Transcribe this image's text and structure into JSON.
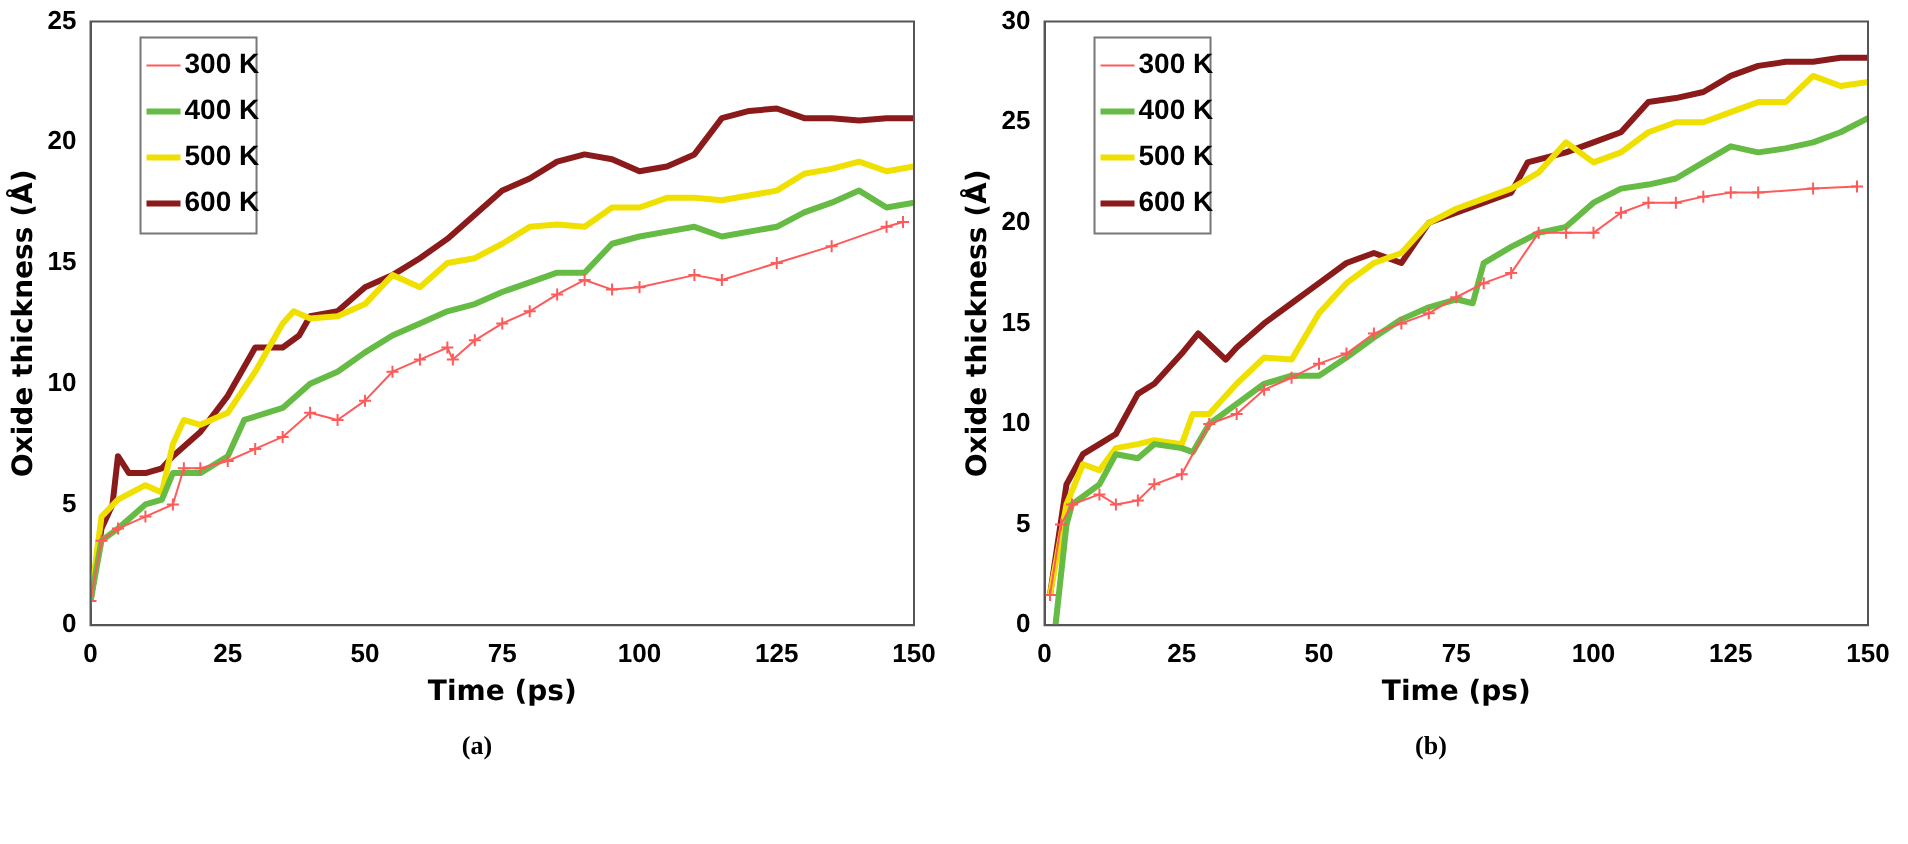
{
  "chart_data": [
    {
      "type": "line",
      "xlabel": "Time (ps)",
      "ylabel": "Oxide thickness (Å)",
      "xlim": [
        0,
        150
      ],
      "xticks": [
        0,
        25,
        50,
        75,
        100,
        125,
        150
      ],
      "ylim": [
        0,
        25
      ],
      "yticks": [
        0,
        5,
        10,
        15,
        20,
        25
      ],
      "grid": false,
      "legend": "top left",
      "annotations": [
        "(a)"
      ],
      "series": [
        {
          "name": "300 K",
          "color": "#ff5a5a",
          "marker": "cross",
          "x": [
            0,
            2,
            5,
            10,
            15,
            17,
            20,
            25,
            30,
            35,
            40,
            45,
            50,
            55,
            60,
            65,
            66,
            70,
            75,
            80,
            85,
            90,
            95,
            100,
            110,
            115,
            125,
            135,
            145,
            148
          ],
          "values": [
            1,
            3.5,
            4,
            4.5,
            5,
            6.5,
            6.5,
            6.8,
            7.3,
            7.8,
            8.8,
            8.5,
            9.3,
            10.5,
            11,
            11.5,
            11,
            11.8,
            12.5,
            13,
            13.7,
            14.3,
            13.9,
            14,
            14.5,
            14.3,
            15,
            15.7,
            16.5,
            16.7
          ]
        },
        {
          "name": "400 K",
          "color": "#66bb44",
          "x": [
            0,
            2,
            5,
            10,
            13,
            15,
            20,
            25,
            28,
            35,
            40,
            45,
            50,
            55,
            60,
            65,
            70,
            75,
            80,
            85,
            90,
            95,
            100,
            105,
            110,
            115,
            125,
            130,
            135,
            140,
            145,
            150
          ],
          "values": [
            1,
            3.5,
            4,
            5,
            5.2,
            6.3,
            6.3,
            7,
            8.5,
            9,
            10,
            10.5,
            11.3,
            12,
            12.5,
            13,
            13.3,
            13.8,
            14.2,
            14.6,
            14.6,
            15.8,
            16.1,
            16.3,
            16.5,
            16.1,
            16.5,
            17.1,
            17.5,
            18,
            17.3,
            17.5
          ]
        },
        {
          "name": "500 K",
          "color": "#f0e000",
          "x": [
            0,
            2,
            5,
            10,
            13,
            15,
            17,
            20,
            25,
            30,
            35,
            37,
            40,
            45,
            50,
            55,
            60,
            65,
            70,
            75,
            80,
            85,
            90,
            95,
            100,
            105,
            110,
            115,
            125,
            130,
            135,
            140,
            145,
            150
          ],
          "values": [
            1,
            4.5,
            5.2,
            5.8,
            5.5,
            7.5,
            8.5,
            8.3,
            8.8,
            10.5,
            12.5,
            13,
            12.7,
            12.8,
            13.3,
            14.5,
            14,
            15,
            15.2,
            15.8,
            16.5,
            16.6,
            16.5,
            17.3,
            17.3,
            17.7,
            17.7,
            17.6,
            18,
            18.7,
            18.9,
            19.2,
            18.8,
            19
          ]
        },
        {
          "name": "600 K",
          "color": "#8b1a1a",
          "x": [
            0,
            2,
            4,
            5,
            7,
            10,
            13,
            15,
            20,
            25,
            30,
            35,
            38,
            40,
            45,
            50,
            55,
            60,
            65,
            70,
            75,
            80,
            85,
            90,
            95,
            100,
            105,
            110,
            115,
            120,
            125,
            130,
            135,
            140,
            145,
            150
          ],
          "values": [
            1,
            4,
            5,
            7,
            6.3,
            6.3,
            6.5,
            7,
            8,
            9.5,
            11.5,
            11.5,
            12,
            12.8,
            13,
            14,
            14.5,
            15.2,
            16,
            17,
            18,
            18.5,
            19.2,
            19.5,
            19.3,
            18.8,
            19,
            19.5,
            21,
            21.3,
            21.4,
            21,
            21,
            20.9,
            21,
            21
          ]
        }
      ]
    },
    {
      "type": "line",
      "xlabel": "Time (ps)",
      "ylabel": "Oxide thickness (Å)",
      "xlim": [
        0,
        150
      ],
      "xticks": [
        0,
        25,
        50,
        75,
        100,
        125,
        150
      ],
      "ylim": [
        0,
        30
      ],
      "yticks": [
        0,
        5,
        10,
        15,
        20,
        25,
        30
      ],
      "grid": false,
      "legend": "top left",
      "annotations": [
        "(b)"
      ],
      "series": [
        {
          "name": "300 K",
          "color": "#ff5a5a",
          "marker": "cross",
          "x": [
            1,
            3,
            5,
            10,
            13,
            17,
            20,
            25,
            30,
            35,
            40,
            45,
            50,
            55,
            60,
            65,
            70,
            75,
            80,
            85,
            90,
            95,
            100,
            105,
            110,
            115,
            120,
            125,
            130,
            140,
            148
          ],
          "values": [
            1.5,
            5,
            6,
            6.5,
            6,
            6.2,
            7,
            7.5,
            10,
            10.5,
            11.7,
            12.3,
            13,
            13.5,
            14.5,
            15,
            15.5,
            16.3,
            17,
            17.5,
            19.5,
            19.5,
            19.5,
            20.5,
            21,
            21,
            21.3,
            21.5,
            21.5,
            21.7,
            21.8
          ]
        },
        {
          "name": "400 K",
          "color": "#66bb44",
          "x": [
            2,
            4,
            5,
            10,
            13,
            17,
            20,
            25,
            27,
            30,
            35,
            40,
            45,
            50,
            55,
            60,
            65,
            70,
            75,
            78,
            80,
            85,
            90,
            95,
            100,
            105,
            110,
            115,
            120,
            125,
            130,
            135,
            140,
            145,
            150
          ],
          "values": [
            0,
            5,
            6,
            7,
            8.5,
            8.3,
            9,
            8.8,
            8.6,
            10,
            11,
            12,
            12.4,
            12.4,
            13.3,
            14.3,
            15.2,
            15.8,
            16.2,
            16,
            18,
            18.8,
            19.5,
            19.8,
            21,
            21.7,
            21.9,
            22.2,
            23,
            23.8,
            23.5,
            23.7,
            24,
            24.5,
            25.2
          ]
        },
        {
          "name": "500 K",
          "color": "#f0e000",
          "x": [
            1,
            4,
            7,
            10,
            13,
            17,
            20,
            25,
            27,
            30,
            35,
            40,
            45,
            50,
            55,
            60,
            65,
            70,
            75,
            80,
            85,
            90,
            95,
            100,
            105,
            110,
            115,
            120,
            125,
            130,
            135,
            140,
            145,
            150
          ],
          "values": [
            1.5,
            6,
            8,
            7.7,
            8.8,
            9,
            9.2,
            9,
            10.5,
            10.5,
            12,
            13.3,
            13.2,
            15.5,
            17,
            18,
            18.5,
            20,
            20.7,
            21.2,
            21.7,
            22.5,
            24,
            23,
            23.5,
            24.5,
            25,
            25,
            25.5,
            26,
            26,
            27.3,
            26.8,
            27
          ]
        },
        {
          "name": "600 K",
          "color": "#8b1a1a",
          "x": [
            1,
            4,
            7,
            10,
            13,
            17,
            20,
            25,
            28,
            33,
            35,
            40,
            45,
            50,
            55,
            60,
            65,
            70,
            75,
            80,
            85,
            88,
            95,
            100,
            105,
            110,
            115,
            120,
            125,
            130,
            135,
            140,
            145,
            150
          ],
          "values": [
            1.5,
            7,
            8.5,
            9,
            9.5,
            11.5,
            12,
            13.5,
            14.5,
            13.2,
            13.8,
            15,
            16,
            17,
            18,
            18.5,
            18,
            20,
            20.5,
            21,
            21.5,
            23,
            23.5,
            24,
            24.5,
            26,
            26.2,
            26.5,
            27.3,
            27.8,
            28,
            28,
            28.2,
            28.2
          ]
        }
      ]
    }
  ]
}
